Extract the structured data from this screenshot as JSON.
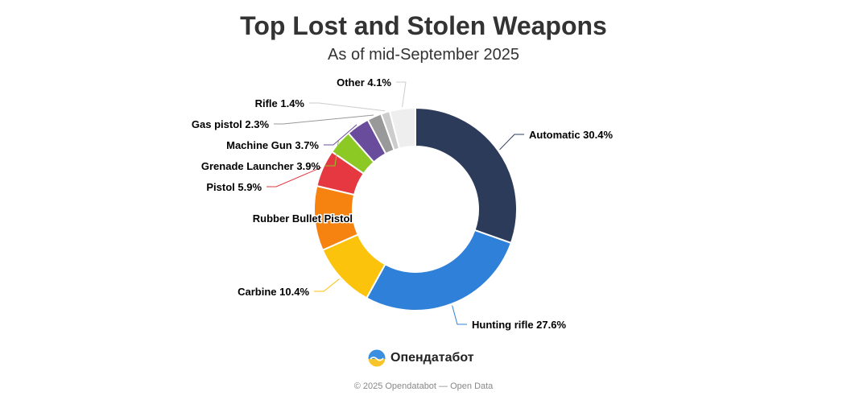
{
  "title": "Top Lost and Stolen Weapons",
  "subtitle": "As of mid-September 2025",
  "chart_data": {
    "type": "pie",
    "variant": "donut",
    "title": "Top Lost and Stolen Weapons",
    "subtitle": "As of mid-September 2025",
    "unit": "%",
    "slices": [
      {
        "label": "Automatic",
        "value": 30.4,
        "display": "Automatic 30.4%",
        "color": "#2d3b5b"
      },
      {
        "label": "Hunting rifle",
        "value": 27.6,
        "display": "Hunting rifle 27.6%",
        "color": "#2f80d8"
      },
      {
        "label": "Carbine",
        "value": 10.4,
        "display": "Carbine 10.4%",
        "color": "#fcc30d"
      },
      {
        "label": "Rubber Bullet Pistol",
        "value": 10.3,
        "display": "Rubber Bullet Pistol",
        "color": "#f6820f"
      },
      {
        "label": "Pistol",
        "value": 5.9,
        "display": "Pistol 5.9%",
        "color": "#e53841"
      },
      {
        "label": "Grenade Launcher",
        "value": 3.9,
        "display": "Grenade Launcher 3.9%",
        "color": "#8dc924"
      },
      {
        "label": "Machine Gun",
        "value": 3.7,
        "display": "Machine Gun 3.7%",
        "color": "#6a4c9c"
      },
      {
        "label": "Gas pistol",
        "value": 2.3,
        "display": "Gas pistol 2.3%",
        "color": "#999999"
      },
      {
        "label": "Rifle",
        "value": 1.4,
        "display": "Rifle 1.4%",
        "color": "#cccccc"
      },
      {
        "label": "Other",
        "value": 4.1,
        "display": "Other 4.1%",
        "color": "#eeeeee"
      }
    ]
  },
  "brand": {
    "name": "Опендатабот",
    "logo_icon": "opendatabot-logo-icon"
  },
  "footer": "© 2025 Opendatabot — Open Data"
}
